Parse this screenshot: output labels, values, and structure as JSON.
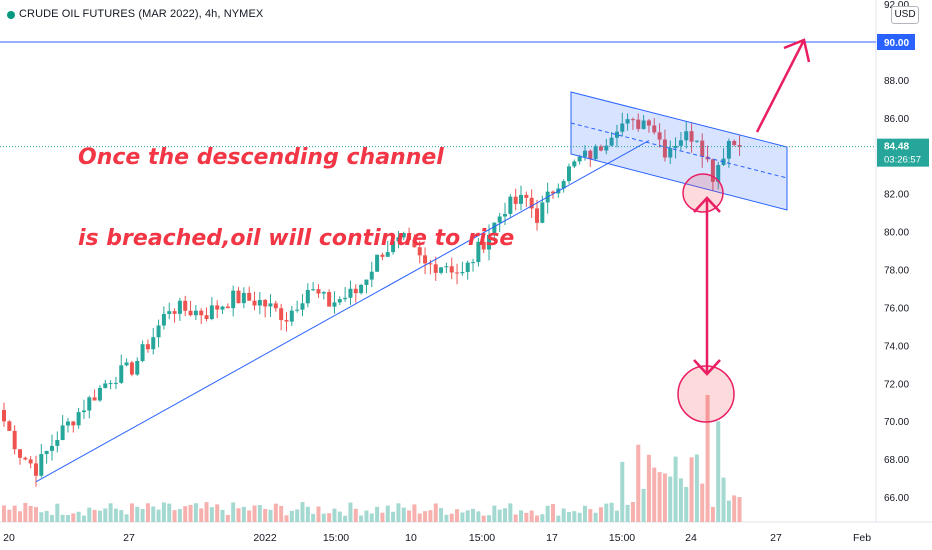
{
  "title": "CRUDE OIL FUTURES (MAR 2022), 4h, NYMEX",
  "currency": "USD",
  "annotation": [
    "Once the descending channel",
    "is breached,oil will continue to rise"
  ],
  "price_axis": {
    "ticks": [
      "66.00",
      "68.00",
      "70.00",
      "72.00",
      "74.00",
      "76.00",
      "78.00",
      "80.00",
      "82.00",
      "84.00",
      "86.00",
      "88.00",
      "90.00",
      "92.00"
    ],
    "level_label": "90.00",
    "last_price": "84.48",
    "countdown": "03:26:57"
  },
  "time_axis": {
    "labels": [
      "20",
      "27",
      "2022",
      "15:00",
      "10",
      "15:00",
      "17",
      "15:00",
      "24",
      "27",
      "Feb"
    ]
  },
  "colors": {
    "up": "#26a69a",
    "down": "#ef5350",
    "line": "#2962ff",
    "arrow": "#e91e63",
    "annotation": "#f23645"
  },
  "chart_data": {
    "type": "candlestick",
    "instrument": "CRUDE OIL FUTURES (MAR 2022)",
    "interval": "4h",
    "exchange": "NYMEX",
    "ylim": [
      65,
      92
    ],
    "horizontal_level": 90.0,
    "last_price": 84.48,
    "close_path": [
      [
        0,
        70.0
      ],
      [
        3,
        68.3
      ],
      [
        6,
        67.5
      ],
      [
        10,
        69.2
      ],
      [
        15,
        70.8
      ],
      [
        20,
        72.3
      ],
      [
        24,
        72.8
      ],
      [
        28,
        74.5
      ],
      [
        31,
        76.0
      ],
      [
        38,
        75.7
      ],
      [
        43,
        76.5
      ],
      [
        48,
        76.3
      ],
      [
        53,
        75.5
      ],
      [
        57,
        77.0
      ],
      [
        61,
        76.2
      ],
      [
        66,
        76.8
      ],
      [
        71,
        79.0
      ],
      [
        75,
        79.5
      ],
      [
        79,
        78.2
      ],
      [
        83,
        78.3
      ],
      [
        86,
        77.7
      ],
      [
        90,
        79.5
      ],
      [
        94,
        81.3
      ],
      [
        98,
        81.7
      ],
      [
        100,
        80.8
      ],
      [
        104,
        82.7
      ],
      [
        108,
        83.8
      ],
      [
        111,
        84.2
      ],
      [
        115,
        85.7
      ],
      [
        118,
        85.6
      ],
      [
        121,
        86.0
      ],
      [
        124,
        84.3
      ],
      [
        127,
        85.0
      ],
      [
        130,
        85.1
      ],
      [
        133,
        83.0
      ],
      [
        136,
        84.8
      ],
      [
        138,
        84.48
      ]
    ]
  }
}
